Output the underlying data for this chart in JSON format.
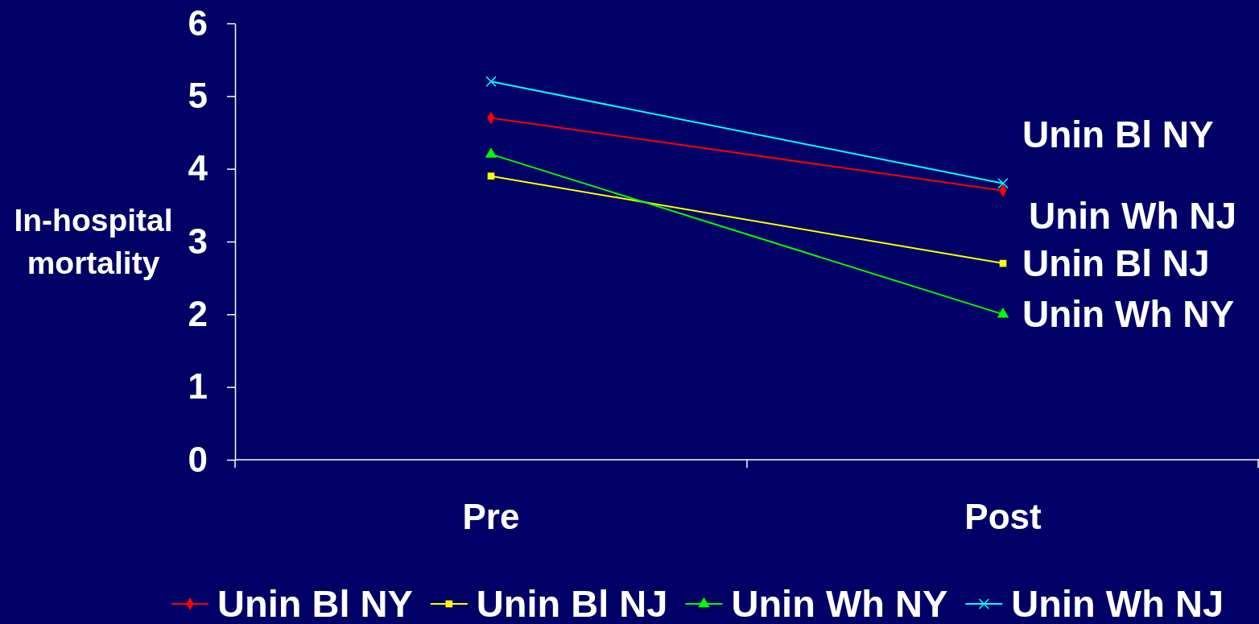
{
  "chart_data": {
    "type": "line",
    "ylabel": "In-hospital mortality",
    "categories": [
      "Pre",
      "Post"
    ],
    "ylim": [
      0,
      6
    ],
    "yticks": [
      0,
      1,
      2,
      3,
      4,
      5,
      6
    ],
    "legend": "bottom",
    "series": [
      {
        "name": "Unin Bl NY",
        "color": "#ff0000",
        "marker": "diamond",
        "values": [
          4.7,
          3.7
        ]
      },
      {
        "name": "Unin Bl NJ",
        "color": "#ffff00",
        "marker": "square",
        "values": [
          3.9,
          2.7
        ]
      },
      {
        "name": "Unin Wh NY",
        "color": "#00ff00",
        "marker": "triangle",
        "values": [
          4.2,
          2.0
        ]
      },
      {
        "name": "Unin Wh NJ",
        "color": "#00ffff",
        "marker": "cross",
        "values": [
          5.2,
          3.8
        ]
      }
    ],
    "annotations": [
      "Unin Bl NY",
      "Unin Wh NJ",
      {
        "text": "Unin Bl NJ",
        "x": "Post",
        "y": 2.7
      },
      {
        "text": "Unin Wh NY",
        "x": "Post",
        "y": 2.0
      }
    ]
  }
}
